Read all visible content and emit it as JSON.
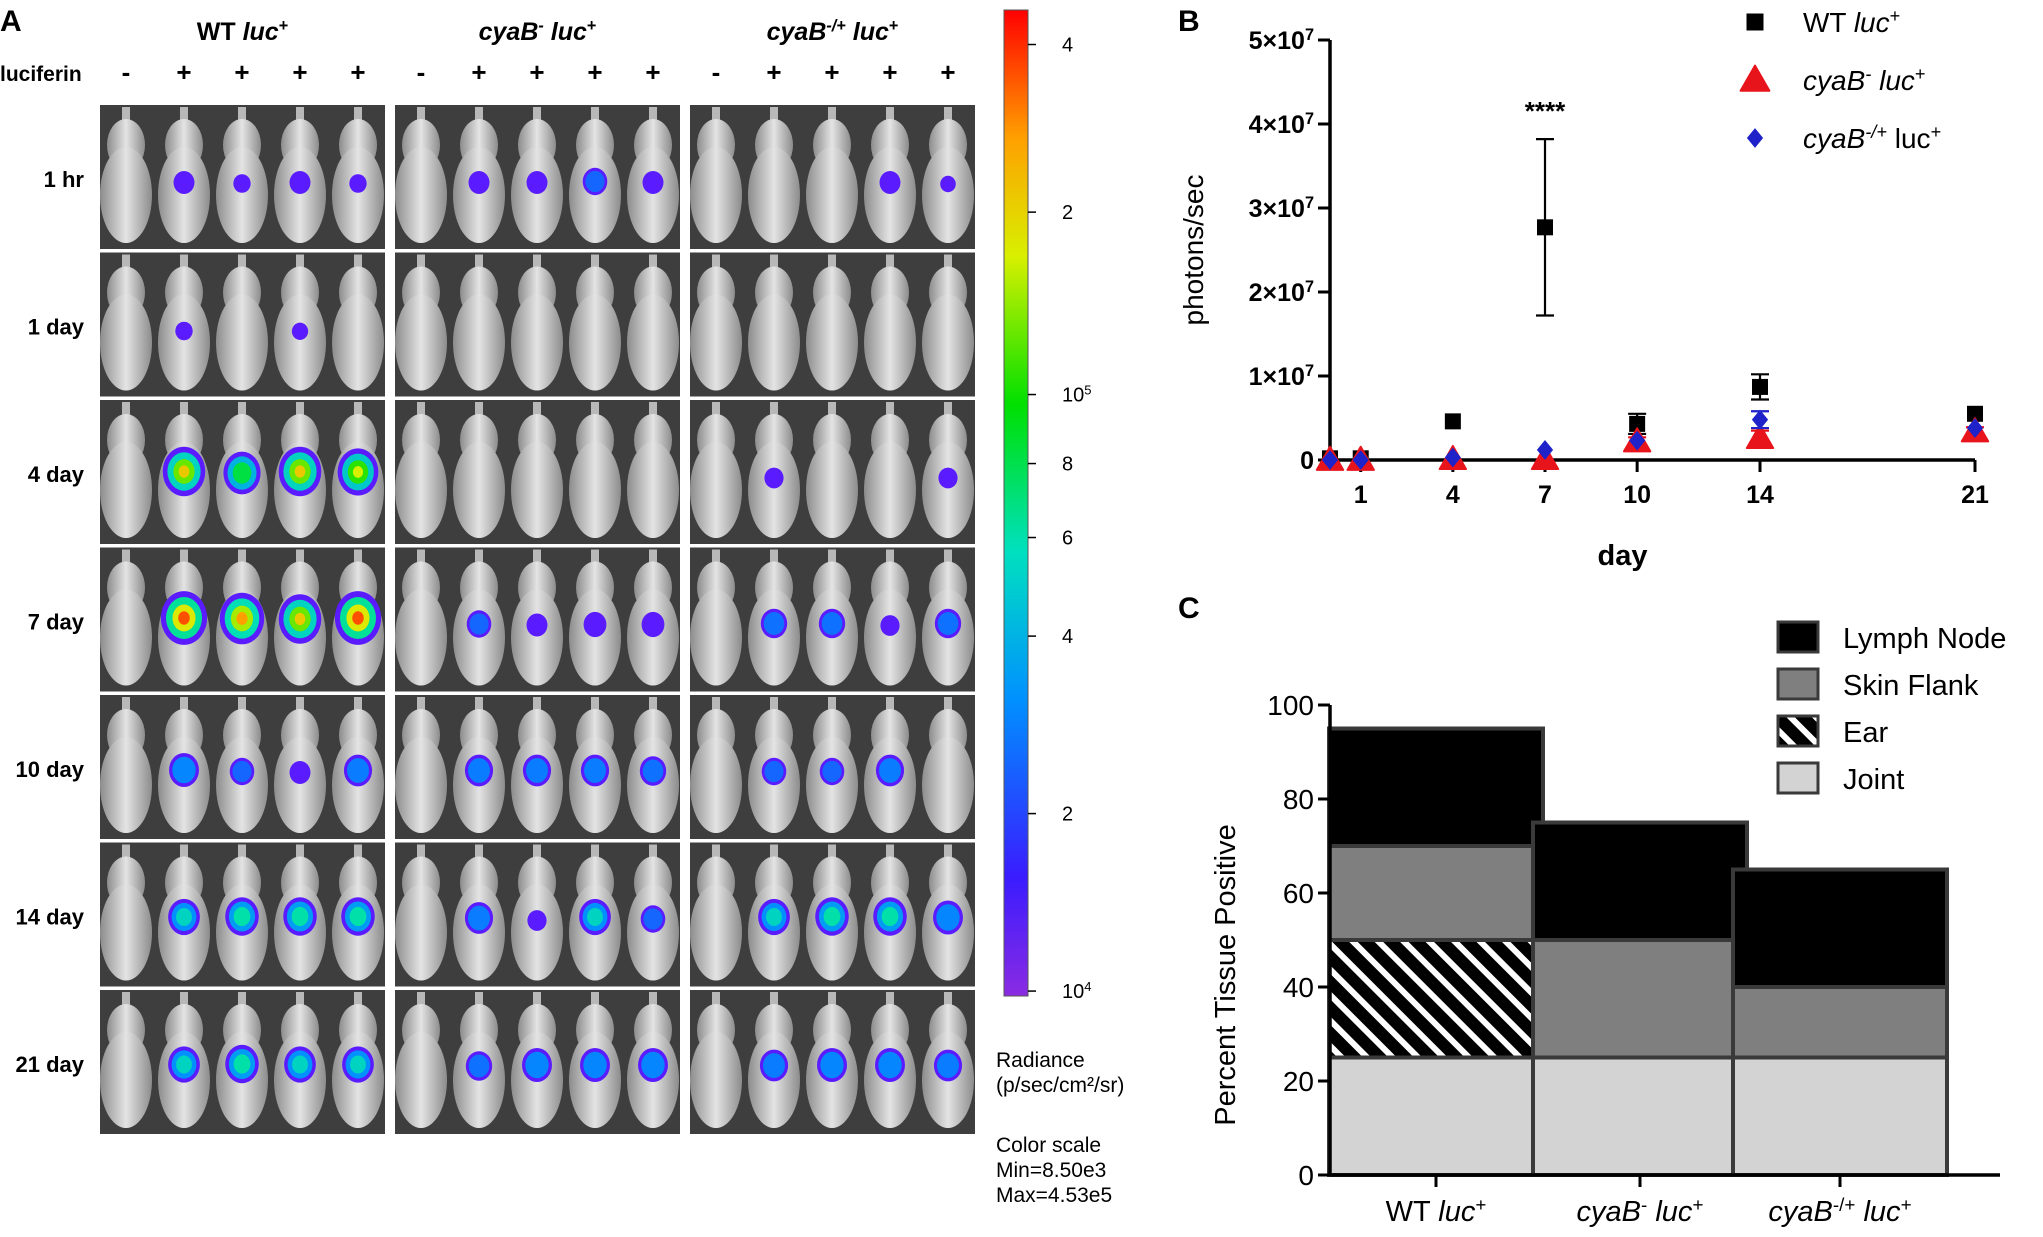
{
  "figure": {
    "panel_letters": [
      "A",
      "B",
      "C"
    ],
    "panel_a": {
      "groups": [
        {
          "label": "WT luc+",
          "base": "WT ",
          "italic": "luc",
          "sup": "+",
          "base_sup": ""
        },
        {
          "label": "cyaB- luc+",
          "base": "",
          "italic": "cyaB",
          "sup": "+",
          "base_sup": "-",
          "italic2": " luc"
        },
        {
          "label": "cyaB-/+ luc+",
          "base": "",
          "italic": "cyaB",
          "sup": "+",
          "base_sup": "-/+",
          "italic2": " luc"
        }
      ],
      "luciferin_label": "luciferin",
      "luciferin_signs": [
        [
          "-",
          "+",
          "+",
          "+",
          "+"
        ],
        [
          "-",
          "+",
          "+",
          "+",
          "+"
        ],
        [
          "-",
          "+",
          "+",
          "+",
          "+"
        ]
      ],
      "time_points": [
        "1 hr",
        "1 day",
        "4 day",
        "7 day",
        "10 day",
        "14 day",
        "21 day"
      ],
      "signal_levels_by_row": [
        [
          [
            0,
            0.25,
            0.15,
            0.25,
            0.15
          ],
          [
            0,
            0.25,
            0.25,
            0.35,
            0.25
          ],
          [
            0,
            0,
            0,
            0.25,
            0.1
          ]
        ],
        [
          [
            0,
            0.15,
            0,
            0.12,
            0
          ],
          [
            0,
            0,
            0,
            0,
            0
          ],
          [
            0,
            0,
            0,
            0,
            0
          ]
        ],
        [
          [
            0,
            0.85,
            0.7,
            0.85,
            0.8
          ],
          [
            0,
            0,
            0,
            0,
            0
          ],
          [
            0,
            0.2,
            0,
            0,
            0.2
          ]
        ],
        [
          [
            0,
            0.95,
            0.9,
            0.85,
            0.95
          ],
          [
            0,
            0.35,
            0.25,
            0.3,
            0.3
          ],
          [
            0,
            0.4,
            0.4,
            0.2,
            0.4
          ]
        ],
        [
          [
            0,
            0.5,
            0.35,
            0.25,
            0.45
          ],
          [
            0,
            0.45,
            0.45,
            0.45,
            0.4
          ],
          [
            0,
            0.35,
            0.35,
            0.45,
            0
          ]
        ],
        [
          [
            0,
            0.55,
            0.6,
            0.6,
            0.6
          ],
          [
            0,
            0.45,
            0.2,
            0.55,
            0.35
          ],
          [
            0,
            0.55,
            0.6,
            0.6,
            0.5
          ]
        ],
        [
          [
            0,
            0.55,
            0.6,
            0.55,
            0.55
          ],
          [
            0,
            0.4,
            0.5,
            0.5,
            0.5
          ],
          [
            0,
            0.45,
            0.5,
            0.5,
            0.45
          ]
        ]
      ],
      "colorbar": {
        "ticks": [
          {
            "label": "4",
            "fraction": 0.965
          },
          {
            "label": "2",
            "fraction": 0.795
          },
          {
            "label": "10",
            "sup": "5",
            "fraction": 0.61
          },
          {
            "label": "8",
            "fraction": 0.54
          },
          {
            "label": "6",
            "fraction": 0.465
          },
          {
            "label": "4",
            "fraction": 0.365
          },
          {
            "label": "2",
            "fraction": 0.185
          },
          {
            "label": "10",
            "sup": "4",
            "fraction": 0.005
          }
        ],
        "unit_line1": "Radiance",
        "unit_line2": "(p/sec/cm²/sr)",
        "scale_line1": "Color scale",
        "scale_line2": "Min=8.50e3",
        "scale_line3": "Max=4.53e5"
      }
    }
  },
  "chart_data": [
    {
      "type": "scatter",
      "panel": "B",
      "xlabel": "day",
      "ylabel": "photons/sec",
      "xlim": [
        0,
        21
      ],
      "ylim": [
        0,
        50000000
      ],
      "x_ticks": [
        1,
        4,
        7,
        10,
        14,
        21
      ],
      "y_ticks": [
        {
          "value": 0,
          "label": "0"
        },
        {
          "value": 10000000,
          "label": "1×10",
          "sup": "7"
        },
        {
          "value": 20000000,
          "label": "2×10",
          "sup": "7"
        },
        {
          "value": 30000000,
          "label": "3×10",
          "sup": "7"
        },
        {
          "value": 40000000,
          "label": "4×10",
          "sup": "7"
        },
        {
          "value": 50000000,
          "label": "5×10",
          "sup": "7"
        }
      ],
      "annotation": {
        "text": "****",
        "x": 7,
        "y": 40500000
      },
      "series": [
        {
          "name": "WT luc+",
          "legend_base": "WT ",
          "legend_italic": "luc",
          "legend_sup": "+",
          "legend_post": "",
          "marker": "square",
          "color": "#000000",
          "x": [
            0,
            1,
            4,
            7,
            10,
            14,
            21
          ],
          "y": [
            200000,
            200000,
            4600000,
            27700000,
            4300000,
            8700000,
            5500000
          ],
          "err": [
            0,
            0,
            0,
            10500000,
            1200000,
            1500000,
            0
          ]
        },
        {
          "name": "cyaB- luc+",
          "legend_base": "",
          "legend_italic": "cyaB",
          "legend_sup": "-",
          "legend_post": " luc",
          "legend_sup2": "+",
          "marker": "triangle",
          "color": "#e8141c",
          "x": [
            0,
            1,
            4,
            7,
            10,
            14,
            21
          ],
          "y": [
            0,
            0,
            100000,
            100000,
            2200000,
            2600000,
            3400000
          ],
          "err": [
            0,
            0,
            0,
            0,
            500000,
            900000,
            500000
          ]
        },
        {
          "name": "cyaB-/+ luc+",
          "legend_base": "",
          "legend_italic": "cyaB",
          "legend_sup": "-/+",
          "legend_post": " luc",
          "legend_sup2": "+",
          "marker": "diamond",
          "color": "#1e22c8",
          "x": [
            0,
            1,
            4,
            7,
            10,
            14,
            21
          ],
          "y": [
            0,
            0,
            300000,
            1200000,
            2300000,
            4800000,
            3800000
          ],
          "err": [
            0,
            0,
            0,
            0,
            0,
            1000000,
            0
          ]
        }
      ]
    },
    {
      "type": "bar",
      "stacked": true,
      "panel": "C",
      "ylabel": "Percent Tissue Positive",
      "ylim": [
        0,
        100
      ],
      "y_ticks": [
        0,
        20,
        40,
        60,
        80,
        100
      ],
      "categories": [
        "WT luc+",
        "cyaB- luc+",
        "cyaB-/+ luc+"
      ],
      "category_parts": [
        {
          "base": "WT ",
          "italic": "luc",
          "sup": "+"
        },
        {
          "italic": "cyaB",
          "sup1": "-",
          "post": " luc",
          "sup": "+"
        },
        {
          "italic": "cyaB",
          "sup1": "-/+",
          "post": " luc",
          "sup": "+"
        }
      ],
      "series": [
        {
          "name": "Joint",
          "fill": "#d3d3d3",
          "values": [
            25,
            25,
            25
          ]
        },
        {
          "name": "Ear",
          "fill": "hatch",
          "values": [
            25,
            0,
            0
          ]
        },
        {
          "name": "Skin Flank",
          "fill": "#7f7f7f",
          "values": [
            20,
            25,
            15
          ]
        },
        {
          "name": "Lymph Node",
          "fill": "#000000",
          "values": [
            25,
            25,
            25
          ]
        }
      ],
      "legend_order": [
        "Lymph Node",
        "Skin Flank",
        "Ear",
        "Joint"
      ]
    }
  ]
}
